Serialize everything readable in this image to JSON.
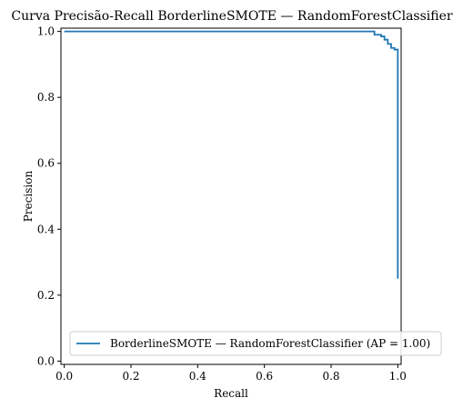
{
  "chart_data": {
    "type": "line",
    "title": "Curva Precisão-Recall BorderlineSMOTE — RandomForestClassifier",
    "xlabel": "Recall",
    "ylabel": "Precision",
    "xlim": [
      -0.01,
      1.01
    ],
    "ylim": [
      -0.01,
      1.01
    ],
    "xticks": [
      0.0,
      0.2,
      0.4,
      0.6,
      0.8,
      1.0
    ],
    "xtick_labels": [
      "0.0",
      "0.2",
      "0.4",
      "0.6",
      "0.8",
      "1.0"
    ],
    "yticks": [
      0.0,
      0.2,
      0.4,
      0.6,
      0.8,
      1.0
    ],
    "ytick_labels": [
      "0.0",
      "0.2",
      "0.4",
      "0.6",
      "0.8",
      "1.0"
    ],
    "grid": false,
    "legend_position": "lower-right",
    "series": [
      {
        "name": "BorderlineSMOTE — RandomForestClassifier (AP = 1.00)",
        "color": "#1f77b4",
        "step": "post",
        "x": [
          0.0,
          0.93,
          0.95,
          0.96,
          0.97,
          0.98,
          0.99,
          1.0,
          1.0
        ],
        "y": [
          1.0,
          0.99,
          0.985,
          0.975,
          0.962,
          0.95,
          0.945,
          0.945,
          0.25
        ]
      }
    ]
  }
}
